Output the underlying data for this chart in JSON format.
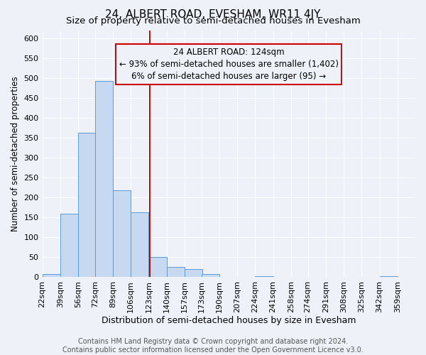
{
  "title": "24, ALBERT ROAD, EVESHAM, WR11 4JY",
  "subtitle": "Size of property relative to semi-detached houses in Evesham",
  "xlabel": "Distribution of semi-detached houses by size in Evesham",
  "ylabel": "Number of semi-detached properties",
  "bin_labels": [
    "22sqm",
    "39sqm",
    "56sqm",
    "72sqm",
    "89sqm",
    "106sqm",
    "123sqm",
    "140sqm",
    "157sqm",
    "173sqm",
    "190sqm",
    "207sqm",
    "224sqm",
    "241sqm",
    "258sqm",
    "274sqm",
    "291sqm",
    "308sqm",
    "325sqm",
    "342sqm",
    "359sqm"
  ],
  "bin_edges": [
    22,
    39,
    56,
    72,
    89,
    106,
    123,
    140,
    157,
    173,
    190,
    207,
    224,
    241,
    258,
    274,
    291,
    308,
    325,
    342,
    359
  ],
  "bar_heights": [
    8,
    160,
    362,
    492,
    218,
    163,
    50,
    25,
    20,
    8,
    0,
    0,
    3,
    0,
    0,
    0,
    0,
    0,
    0,
    3
  ],
  "bar_color": "#c6d9f0",
  "bar_edge_color": "#5b9bd5",
  "property_line_x": 124,
  "property_line_color": "#cc0000",
  "annotation_title": "24 ALBERT ROAD: 124sqm",
  "annotation_line1": "← 93% of semi-detached houses are smaller (1,402)",
  "annotation_line2": "6% of semi-detached houses are larger (95) →",
  "annotation_box_color": "#cc0000",
  "ylim": [
    0,
    620
  ],
  "yticks": [
    0,
    50,
    100,
    150,
    200,
    250,
    300,
    350,
    400,
    450,
    500,
    550,
    600
  ],
  "footer_line1": "Contains HM Land Registry data © Crown copyright and database right 2024.",
  "footer_line2": "Contains public sector information licensed under the Open Government Licence v3.0.",
  "background_color": "#eef2f8",
  "grid_color": "#ffffff",
  "title_fontsize": 11,
  "subtitle_fontsize": 9.5,
  "xlabel_fontsize": 9,
  "ylabel_fontsize": 8.5,
  "tick_fontsize": 8,
  "footer_fontsize": 7
}
